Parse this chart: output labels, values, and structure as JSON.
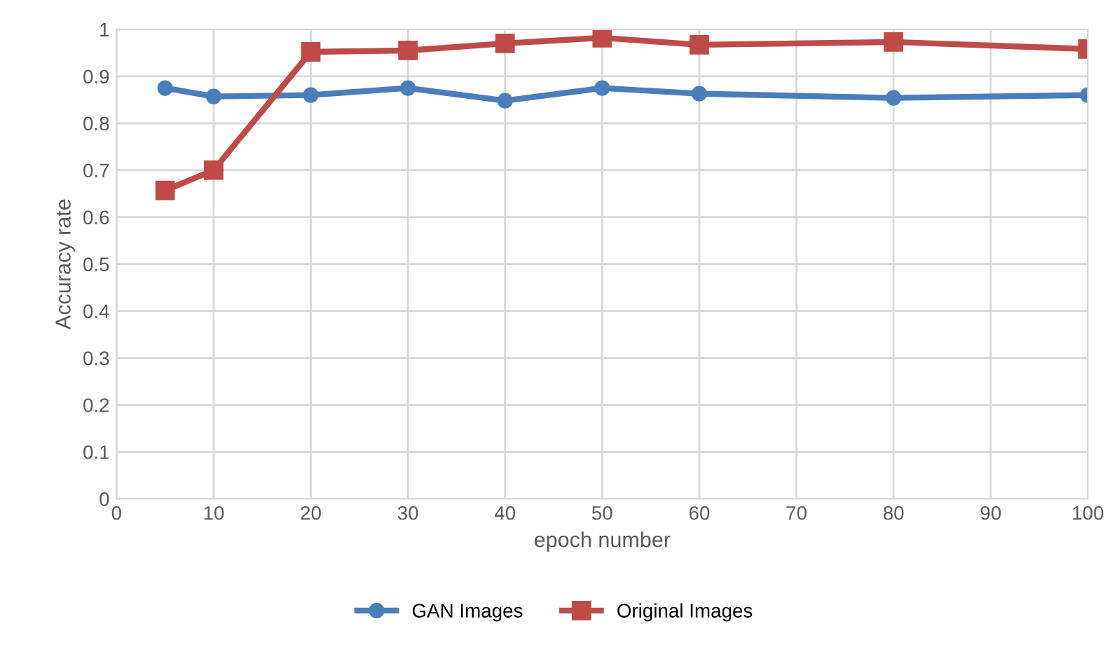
{
  "chart_data": {
    "type": "line",
    "xlabel": "epoch number",
    "ylabel": "Accuracy rate",
    "x": [
      5,
      10,
      20,
      30,
      40,
      50,
      60,
      80,
      100
    ],
    "series": [
      {
        "name": "GAN Images",
        "color": "#4a7ebb",
        "marker": "circle",
        "values": [
          0.875,
          0.857,
          0.86,
          0.875,
          0.848,
          0.875,
          0.863,
          0.854,
          0.86
        ]
      },
      {
        "name": "Original Images",
        "color": "#be4b48",
        "marker": "square",
        "values": [
          0.657,
          0.7,
          0.952,
          0.955,
          0.97,
          0.982,
          0.967,
          0.973,
          0.958
        ]
      }
    ],
    "xlim": [
      0,
      100
    ],
    "xticks": [
      0,
      10,
      20,
      30,
      40,
      50,
      60,
      70,
      80,
      90,
      100
    ],
    "ylim": [
      0,
      1
    ],
    "yticks": [
      0,
      0.1,
      0.2,
      0.3,
      0.4,
      0.5,
      0.6,
      0.7,
      0.8,
      0.9,
      1
    ],
    "grid": true,
    "legend": "bottom"
  }
}
